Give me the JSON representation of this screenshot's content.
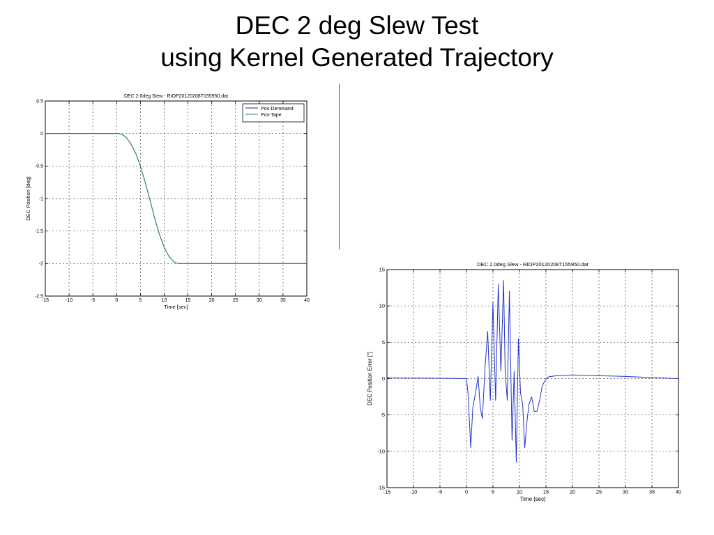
{
  "slide": {
    "title_line1": "DEC 2 deg Slew Test",
    "title_line2": "using Kernel Generated Trajectory"
  },
  "chart_data": [
    {
      "type": "line",
      "title": "DEC 2.0deg Slew - RIOP20120208T155950.dat",
      "xlabel": "Time [sec]",
      "ylabel": "DEC Position [deg]",
      "xlim": [
        -15,
        40
      ],
      "ylim": [
        -2.5,
        0.5
      ],
      "xticks": [
        -15,
        -10,
        -5,
        0,
        5,
        10,
        15,
        20,
        25,
        30,
        35,
        40
      ],
      "yticks": [
        0.5,
        0,
        -0.5,
        -1,
        -1.5,
        -2,
        -2.5
      ],
      "xtick_labels": [
        "-15",
        "-10",
        "-5",
        "0",
        "5",
        "10",
        "15",
        "20",
        "25",
        "30",
        "35",
        "40"
      ],
      "ytick_labels": [
        "0.5",
        "0",
        "-0.5",
        "-1",
        "-1.5",
        "-2",
        "-2.5"
      ],
      "grid": true,
      "legend_position": "top-right",
      "series": [
        {
          "name": "Pos-Demmand",
          "color": "#1a237e",
          "x": [
            -15,
            0,
            0.5,
            1,
            1.5,
            2,
            3,
            4,
            5,
            6,
            7,
            8,
            9,
            10,
            11,
            12,
            12.5,
            13,
            13.5,
            14,
            20,
            30,
            40
          ],
          "y": [
            0,
            0,
            -0.002,
            -0.01,
            -0.03,
            -0.06,
            -0.16,
            -0.3,
            -0.5,
            -0.75,
            -1.02,
            -1.3,
            -1.55,
            -1.75,
            -1.89,
            -1.97,
            -1.99,
            -2.0,
            -2.0,
            -2.0,
            -2.0,
            -2.0,
            -2.0
          ]
        },
        {
          "name": "Pos-Tape",
          "color": "#2e8b57",
          "x": [
            -15,
            0,
            0.5,
            1,
            1.5,
            2,
            3,
            4,
            5,
            6,
            7,
            8,
            9,
            10,
            11,
            12,
            12.5,
            13,
            13.5,
            14,
            20,
            30,
            40
          ],
          "y": [
            0,
            0,
            -0.002,
            -0.01,
            -0.03,
            -0.06,
            -0.16,
            -0.3,
            -0.5,
            -0.75,
            -1.02,
            -1.3,
            -1.55,
            -1.75,
            -1.89,
            -1.97,
            -1.99,
            -2.0,
            -2.0,
            -2.0,
            -2.0,
            -2.0,
            -2.0
          ]
        }
      ]
    },
    {
      "type": "line",
      "title": "DEC 2.0deg Slew - RIOP20120208T155950.dat",
      "xlabel": "Time [sec]",
      "ylabel": "DEC Position Error [\"]",
      "xlim": [
        -15,
        40
      ],
      "ylim": [
        -15,
        15
      ],
      "xticks": [
        -15,
        -10,
        -5,
        0,
        5,
        10,
        15,
        20,
        25,
        30,
        35,
        40
      ],
      "yticks": [
        15,
        10,
        5,
        0,
        -5,
        -10,
        -15
      ],
      "xtick_labels": [
        "-15",
        "-10",
        "-5",
        "0",
        "5",
        "10",
        "15",
        "20",
        "25",
        "30",
        "35",
        "40"
      ],
      "ytick_labels": [
        "15",
        "10",
        "5",
        "0",
        "-5",
        "-10",
        "-15"
      ],
      "grid": true,
      "series": [
        {
          "color": "#2233cc",
          "x": [
            -15,
            -5,
            0,
            0.3,
            0.8,
            1.2,
            1.7,
            2.2,
            2.6,
            3.0,
            3.5,
            4.0,
            4.5,
            5.0,
            5.5,
            6.0,
            6.5,
            7.0,
            7.3,
            7.7,
            8.1,
            8.6,
            9.0,
            9.4,
            9.8,
            10.2,
            10.6,
            11.0,
            11.4,
            11.8,
            12.3,
            12.8,
            13.3,
            13.8,
            14.3,
            14.8,
            15.3,
            16,
            17,
            20,
            25,
            30,
            35,
            40
          ],
          "y": [
            0.1,
            0.05,
            0,
            -2,
            -9.5,
            -4,
            -2,
            0.3,
            -4,
            -5.5,
            1.5,
            6.5,
            -3,
            10.5,
            -3,
            13,
            1,
            13.5,
            1,
            -3,
            12,
            -8.5,
            1,
            -11.5,
            5.5,
            -2,
            -3.5,
            -9.5,
            -6,
            -3.5,
            -2.5,
            -4.5,
            -4.5,
            -3,
            -1,
            -0.3,
            0.2,
            0.3,
            0.4,
            0.5,
            0.4,
            0.3,
            0.15,
            0
          ]
        }
      ]
    }
  ]
}
